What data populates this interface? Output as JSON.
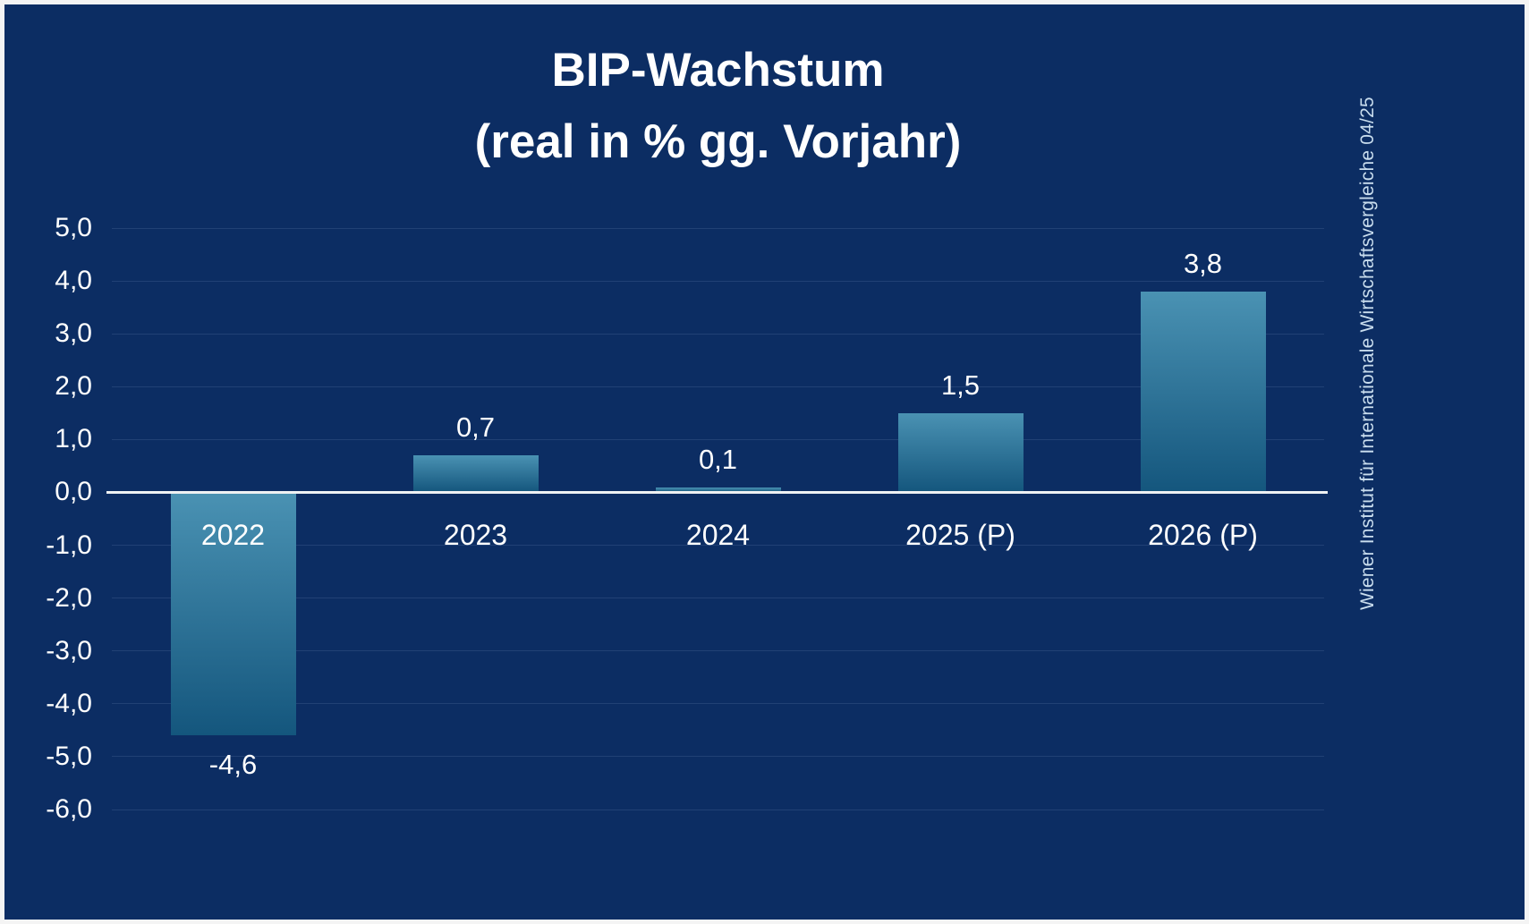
{
  "frame": {
    "background": "#0c2d63",
    "border_color": "#f4f4f4"
  },
  "title": {
    "line1": "BIP-Wachstum",
    "line2": "(real in % gg. Vorjahr)"
  },
  "source_vertical": "Wiener Institut für Internationale Wirtschaftsvergleiche 04/25",
  "chart_data": {
    "type": "bar",
    "title": "BIP-Wachstum (real in % gg. Vorjahr)",
    "categories": [
      "2022",
      "2023",
      "2024",
      "2025 (P)",
      "2026 (P)"
    ],
    "values": [
      -4.6,
      0.7,
      0.1,
      1.5,
      3.8
    ],
    "value_labels": [
      "-4,6",
      "0,7",
      "0,1",
      "1,5",
      "3,8"
    ],
    "ylim": [
      -6,
      5
    ],
    "ytick_step": 1,
    "ytick_labels": [
      "5,0",
      "4,0",
      "3,0",
      "2,0",
      "1,0",
      "0,0",
      "-1,0",
      "-2,0",
      "-3,0",
      "-4,0",
      "-5,0",
      "-6,0"
    ],
    "grid": true,
    "legend": "none",
    "bar_color_top": "#4a92b3",
    "bar_color_bottom": "#14567d",
    "zero_line_color": "#eef1f3",
    "background_color": "#0c2d63",
    "text_color": "#ffffff"
  }
}
